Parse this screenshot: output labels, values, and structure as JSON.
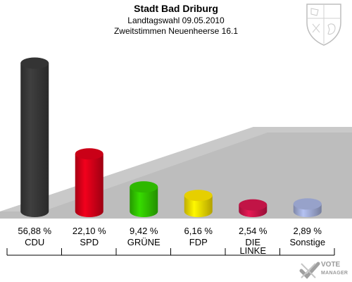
{
  "header": {
    "title": "Stadt Bad Driburg",
    "subtitle": "Landtagswahl 09.05.2010",
    "subtitle2": "Zweitstimmen Neuenheerse 16.1"
  },
  "watermark": {
    "line1": "VOTE",
    "line2": "MANAGER",
    "icon": "vote-check-icon"
  },
  "crest": {
    "icon": "coat-of-arms-icon"
  },
  "chart_data": {
    "type": "bar",
    "title": "Stadt Bad Driburg",
    "subtitle": "Landtagswahl 09.05.2010 / Zweitstimmen Neuenheerse 16.1",
    "categories": [
      "CDU",
      "SPD",
      "GRÜNE",
      "FDP",
      "DIE LINKE",
      "Sonstige"
    ],
    "values": [
      56.88,
      22.1,
      9.42,
      6.16,
      2.54,
      2.89
    ],
    "value_labels": [
      "56,88 %",
      "22,10 %",
      "9,42 %",
      "6,16 %",
      "2,54 %",
      "2,89 %"
    ],
    "colors": [
      "#3a3a3a",
      "#e0001a",
      "#33cc00",
      "#ffe600",
      "#d6164e",
      "#a8b4e0"
    ],
    "unit": "%",
    "ylim": [
      0,
      60
    ],
    "grid": false,
    "legend": "none"
  }
}
